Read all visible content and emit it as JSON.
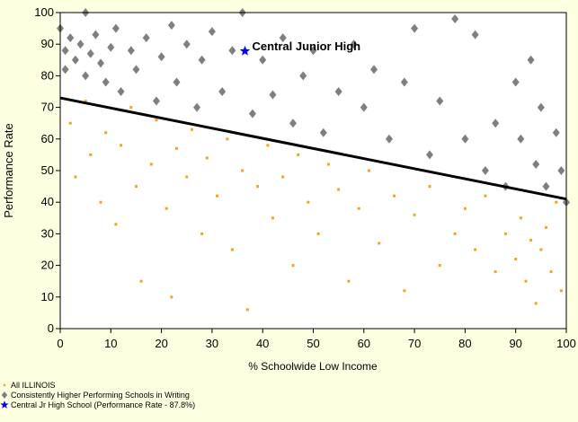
{
  "chart_data": {
    "type": "scatter",
    "xlabel": "% Schoolwide Low Income",
    "ylabel": "Performance Rate",
    "annotation": "Central Junior High",
    "annotation_color": "#0000ff",
    "xlim": [
      0,
      100
    ],
    "ylim": [
      0,
      100
    ],
    "xticks": [
      0,
      10,
      20,
      30,
      40,
      50,
      60,
      70,
      80,
      90,
      100
    ],
    "yticks": [
      0,
      10,
      20,
      30,
      40,
      50,
      60,
      70,
      80,
      90,
      100
    ],
    "series": [
      {
        "name": "All ILLINOIS",
        "color": "#f5a31a",
        "marker": "square",
        "x": [
          2,
          3,
          5,
          6,
          8,
          9,
          11,
          12,
          14,
          15,
          16,
          18,
          19,
          21,
          22,
          23,
          25,
          26,
          28,
          29,
          31,
          33,
          34,
          36,
          37,
          39,
          41,
          42,
          44,
          46,
          47,
          49,
          51,
          53,
          55,
          57,
          59,
          61,
          63,
          66,
          68,
          70,
          73,
          75,
          78,
          80,
          82,
          84,
          86,
          88,
          90,
          91,
          92,
          93,
          94,
          95,
          96,
          97,
          98,
          99
        ],
        "values": [
          65,
          48,
          72,
          55,
          40,
          62,
          33,
          58,
          70,
          45,
          15,
          52,
          66,
          38,
          10,
          57,
          48,
          63,
          30,
          54,
          42,
          60,
          25,
          50,
          6,
          45,
          58,
          35,
          48,
          20,
          55,
          40,
          30,
          52,
          44,
          15,
          38,
          50,
          27,
          42,
          12,
          36,
          45,
          20,
          30,
          38,
          25,
          42,
          18,
          30,
          22,
          35,
          15,
          28,
          8,
          25,
          32,
          18,
          40,
          12
        ]
      },
      {
        "name": "Consistently Higher Performing Schools in Writing",
        "color": "#7f7f7f",
        "marker": "diamond",
        "x": [
          0,
          1,
          1,
          2,
          3,
          4,
          5,
          5,
          6,
          7,
          8,
          9,
          10,
          11,
          12,
          14,
          15,
          17,
          19,
          20,
          22,
          23,
          25,
          27,
          28,
          30,
          32,
          34,
          36,
          38,
          40,
          42,
          44,
          46,
          48,
          50,
          52,
          55,
          58,
          60,
          62,
          65,
          68,
          70,
          73,
          75,
          78,
          80,
          82,
          84,
          86,
          88,
          90,
          91,
          93,
          94,
          95,
          96,
          98,
          99,
          100
        ],
        "values": [
          95,
          88,
          82,
          92,
          85,
          90,
          100,
          80,
          87,
          93,
          84,
          78,
          89,
          95,
          75,
          88,
          82,
          92,
          72,
          86,
          96,
          78,
          90,
          70,
          85,
          94,
          75,
          88,
          100,
          68,
          85,
          74,
          92,
          65,
          80,
          88,
          62,
          75,
          90,
          70,
          82,
          60,
          78,
          95,
          55,
          72,
          98,
          60,
          93,
          50,
          65,
          45,
          78,
          60,
          85,
          52,
          70,
          45,
          62,
          50,
          40
        ]
      },
      {
        "name": "Central Jr High School (Performance Rate - 87.8%)",
        "color": "#0000ff",
        "marker": "star",
        "x": [
          36.5
        ],
        "values": [
          87.8
        ]
      }
    ],
    "trendline": {
      "x": [
        0,
        100
      ],
      "values": [
        73,
        41
      ],
      "color": "#000000"
    }
  }
}
